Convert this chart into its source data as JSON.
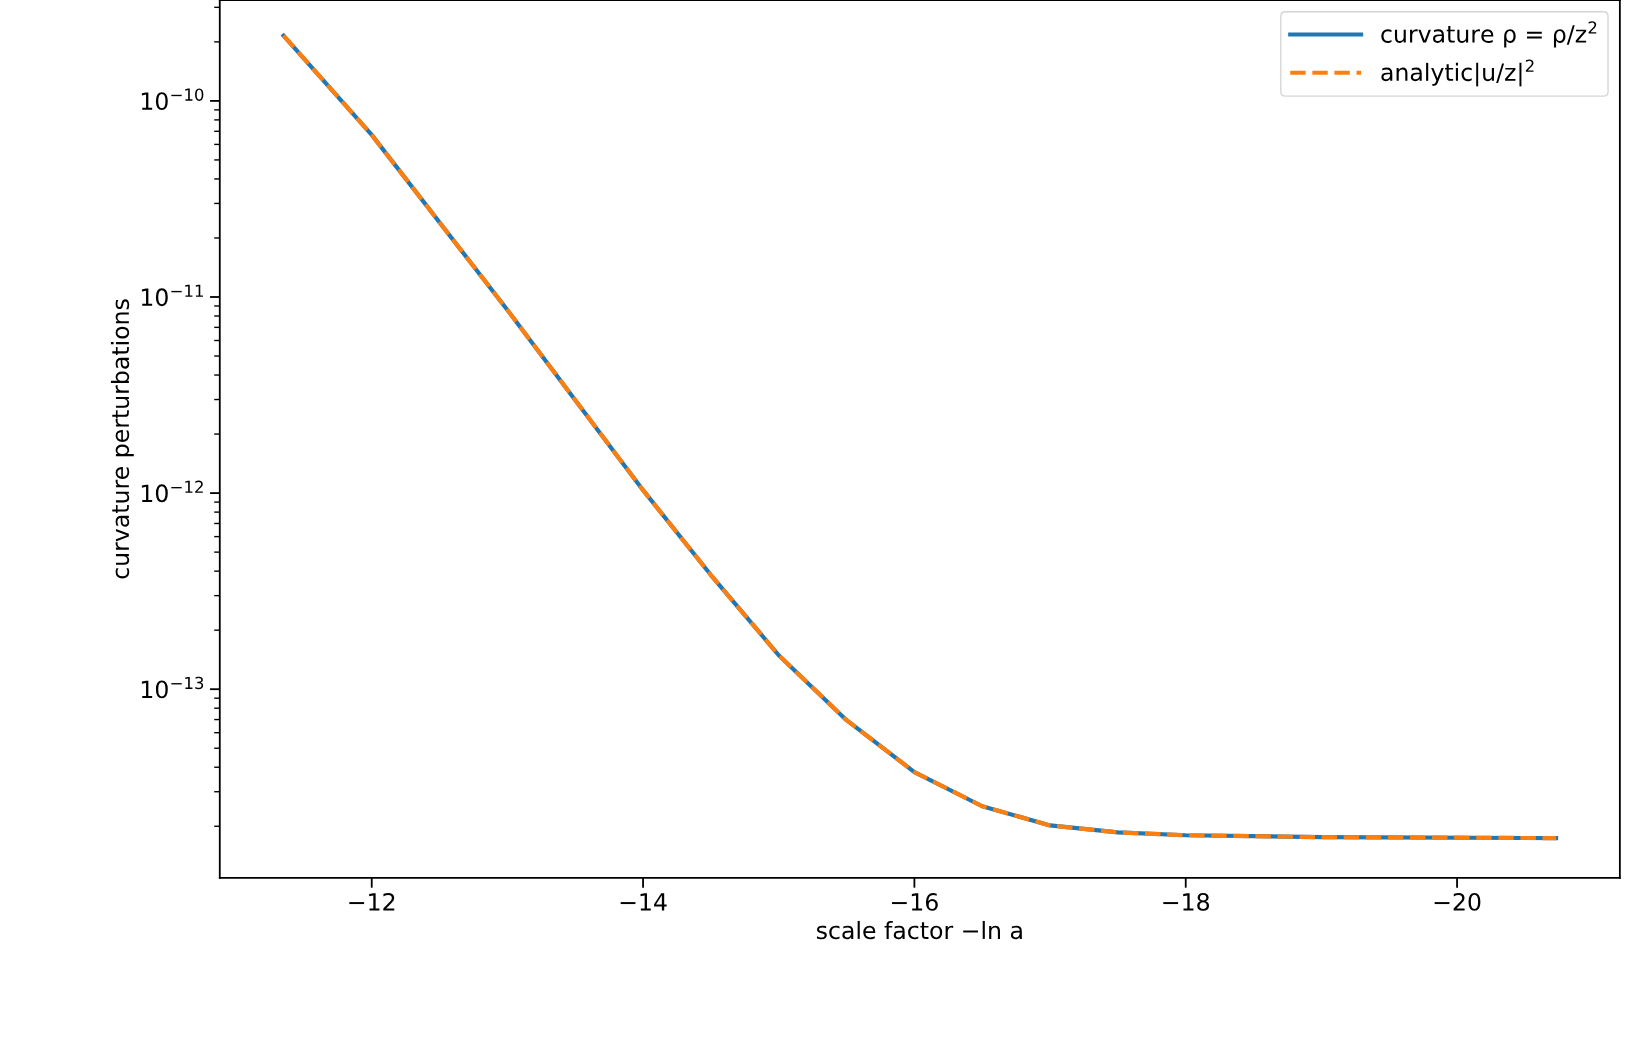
{
  "chart_data": {
    "type": "line",
    "xlabel": "scale factor −ln a",
    "ylabel": "curvature perturbations",
    "x": [
      -11.35,
      -12,
      -13,
      -14,
      -14.5,
      -15,
      -15.5,
      -16,
      -16.5,
      -17,
      -17.5,
      -18,
      -19,
      -20.73
    ],
    "series": [
      {
        "name": "curvature ρ = ρ/z$^{2}$",
        "color": "#1f77b4",
        "line_style": "solid",
        "values": [
          2.15e-10,
          6.71e-11,
          8.59e-12,
          1.035e-12,
          3.82e-13,
          1.49e-13,
          6.95e-14,
          3.78e-14,
          2.53e-14,
          2.02e-14,
          1.86e-14,
          1.8e-14,
          1.76e-14,
          1.74e-14
        ]
      },
      {
        "name": "analytic|u/z|$^{2}$",
        "color": "#ff7f0e",
        "line_style": "dashed",
        "values": [
          2.15e-10,
          6.71e-11,
          8.59e-12,
          1.035e-12,
          3.82e-13,
          1.49e-13,
          6.95e-14,
          3.78e-14,
          2.53e-14,
          2.02e-14,
          1.86e-14,
          1.8e-14,
          1.76e-14,
          1.74e-14
        ]
      }
    ],
    "log": "y",
    "xlim": [
      -10.88,
      -21.2
    ],
    "ylim": [
      1.09e-14,
      3.27e-10
    ],
    "xticks": [
      {
        "value": -12,
        "label": "−12"
      },
      {
        "value": -14,
        "label": "−14"
      },
      {
        "value": -16,
        "label": "−16"
      },
      {
        "value": -18,
        "label": "−18"
      },
      {
        "value": -20,
        "label": "−20"
      }
    ],
    "yticks": [
      {
        "value": 1e-13,
        "label": "10$^{−13}$"
      },
      {
        "value": 1e-12,
        "label": "10$^{−12}$"
      },
      {
        "value": 1e-11,
        "label": "10$^{−11}$"
      },
      {
        "value": 1e-10,
        "label": "10$^{−10}$"
      }
    ],
    "grid": false,
    "legend": "top right",
    "marker": "none"
  }
}
